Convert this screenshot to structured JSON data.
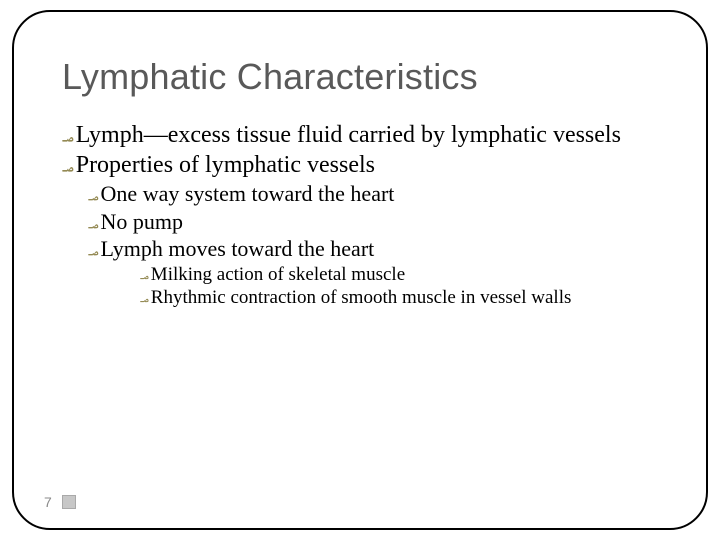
{
  "title": {
    "text": "Lymphatic Characteristics",
    "fontsize": 36,
    "color": "#595959"
  },
  "bullet": {
    "glyph": "؃",
    "color": "#948a54"
  },
  "list": {
    "lvl1": [
      "Lymph—excess tissue fluid carried by lymphatic vessels",
      "Properties of lymphatic vessels"
    ],
    "lvl2": [
      "One way system toward the heart",
      "No pump",
      "Lymph moves toward the heart"
    ],
    "lvl3": [
      "Milking action of skeletal muscle",
      "Rhythmic contraction of smooth muscle in vessel walls"
    ]
  },
  "page_number": "7",
  "colors": {
    "background": "#ffffff",
    "text": "#000000",
    "border": "#000000"
  }
}
